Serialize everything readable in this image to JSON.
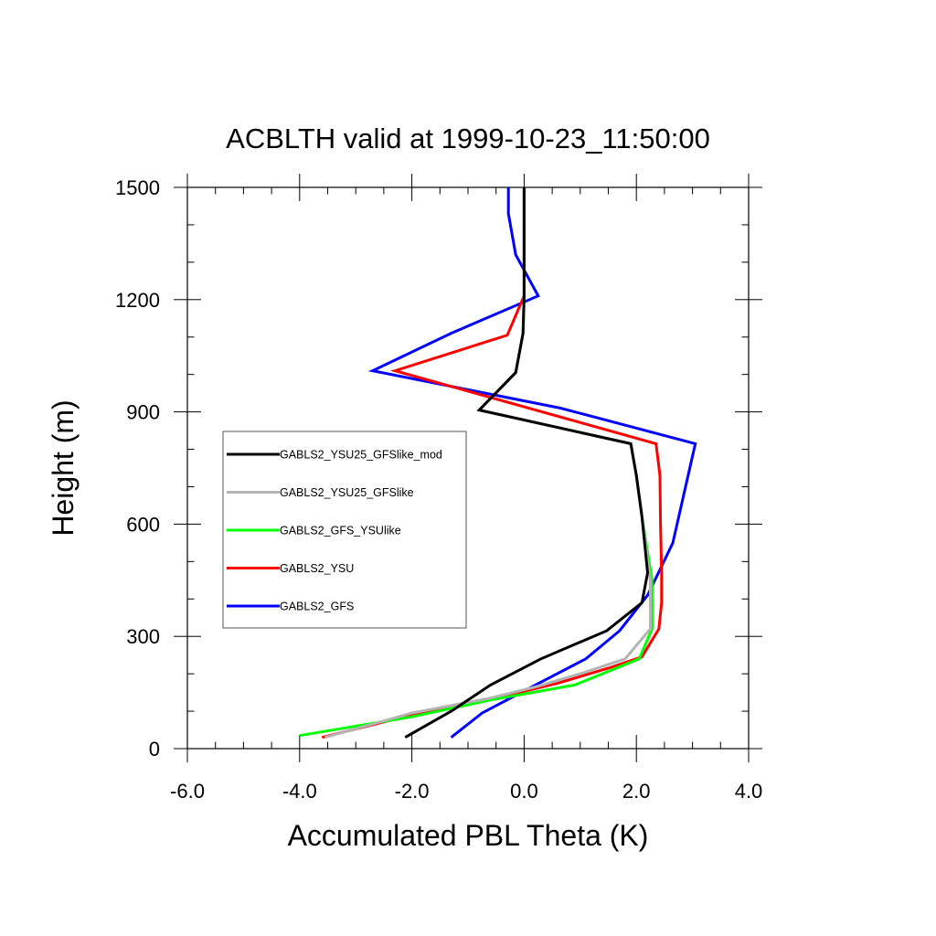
{
  "chart_data": {
    "type": "line",
    "title": "ACBLTH valid at 1999-10-23_11:50:00",
    "xlabel": "Accumulated PBL Theta (K)",
    "ylabel": "Height (m)",
    "xlim": [
      -6.0,
      4.0
    ],
    "ylim": [
      0,
      1500
    ],
    "x_ticks": [
      -6.0,
      -4.0,
      -2.0,
      0.0,
      2.0,
      4.0
    ],
    "x_tick_labels": [
      "-6.0",
      "-4.0",
      "-2.0",
      "0.0",
      "2.0",
      "4.0"
    ],
    "y_ticks": [
      0,
      300,
      600,
      900,
      1200,
      1500
    ],
    "y_tick_labels": [
      "0",
      "300",
      "600",
      "900",
      "1200",
      "1500"
    ],
    "legend_placement": "left-middle",
    "series": [
      {
        "name": "GABLS2_YSU25_GFSlike_mod",
        "color": "#000000",
        "points": [
          [
            -2.12,
            30
          ],
          [
            -1.3,
            100
          ],
          [
            -0.6,
            170
          ],
          [
            0.3,
            240
          ],
          [
            1.47,
            315
          ],
          [
            2.1,
            390
          ],
          [
            2.2,
            470
          ],
          [
            2.1,
            620
          ],
          [
            2.0,
            730
          ],
          [
            1.9,
            815
          ],
          [
            -0.8,
            905
          ],
          [
            -0.15,
            1005
          ],
          [
            -0.02,
            1110
          ],
          [
            0.0,
            1210
          ],
          [
            0.0,
            1320
          ],
          [
            0.0,
            1400
          ],
          [
            0.0,
            1500
          ]
        ]
      },
      {
        "name": "GABLS2_YSU25_GFSlike",
        "color": "#b4b4b4",
        "points": [
          [
            -3.55,
            30
          ],
          [
            -2.0,
            95
          ],
          [
            -0.6,
            135
          ],
          [
            0.2,
            165
          ],
          [
            1.0,
            200
          ],
          [
            1.8,
            240
          ],
          [
            2.25,
            320
          ],
          [
            2.25,
            450
          ],
          [
            2.1,
            620
          ],
          [
            2.0,
            730
          ],
          [
            1.9,
            815
          ],
          [
            -0.8,
            905
          ],
          [
            -0.15,
            1005
          ],
          [
            -0.02,
            1110
          ],
          [
            0.0,
            1210
          ],
          [
            0.0,
            1320
          ],
          [
            0.0,
            1400
          ],
          [
            0.0,
            1500
          ]
        ]
      },
      {
        "name": "GABLS2_GFS_YSUlike",
        "color": "#00ff00",
        "points": [
          [
            -4.0,
            35
          ],
          [
            -2.0,
            85
          ],
          [
            -0.6,
            130
          ],
          [
            0.9,
            170
          ],
          [
            2.05,
            240
          ],
          [
            2.28,
            320
          ],
          [
            2.28,
            450
          ],
          [
            2.1,
            620
          ],
          [
            2.0,
            730
          ],
          [
            1.9,
            815
          ],
          [
            -0.8,
            905
          ],
          [
            -0.15,
            1005
          ],
          [
            -0.02,
            1110
          ],
          [
            0.0,
            1210
          ],
          [
            0.0,
            1320
          ],
          [
            0.0,
            1400
          ],
          [
            0.0,
            1500
          ]
        ]
      },
      {
        "name": "GABLS2_YSU",
        "color": "#ff0000",
        "points": [
          [
            -3.6,
            30
          ],
          [
            -2.0,
            90
          ],
          [
            -0.5,
            135
          ],
          [
            0.6,
            175
          ],
          [
            1.5,
            215
          ],
          [
            2.1,
            245
          ],
          [
            2.4,
            320
          ],
          [
            2.45,
            390
          ],
          [
            2.45,
            470
          ],
          [
            2.43,
            600
          ],
          [
            2.42,
            730
          ],
          [
            2.35,
            815
          ],
          [
            -2.3,
            1010
          ],
          [
            -0.3,
            1105
          ],
          [
            0.0,
            1210
          ],
          [
            0.0,
            1320
          ],
          [
            0.0,
            1400
          ],
          [
            0.0,
            1500
          ]
        ]
      },
      {
        "name": "GABLS2_GFS",
        "color": "#0000ff",
        "points": [
          [
            -1.3,
            30
          ],
          [
            -0.75,
            95
          ],
          [
            0.2,
            170
          ],
          [
            1.1,
            240
          ],
          [
            1.7,
            315
          ],
          [
            2.2,
            410
          ],
          [
            2.65,
            550
          ],
          [
            3.05,
            815
          ],
          [
            0.65,
            910
          ],
          [
            -2.7,
            1010
          ],
          [
            -1.3,
            1110
          ],
          [
            0.25,
            1210
          ],
          [
            -0.15,
            1320
          ],
          [
            -0.28,
            1430
          ],
          [
            -0.28,
            1500
          ]
        ]
      }
    ]
  }
}
